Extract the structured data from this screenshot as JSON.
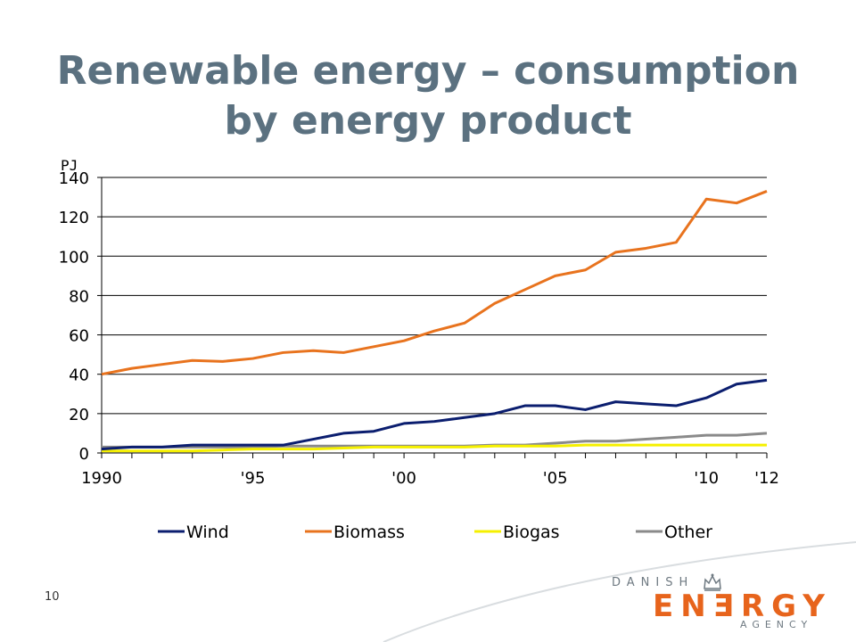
{
  "slide": {
    "title_line1": "Renewable energy – consumption",
    "title_line2": "by energy product",
    "page_number": "10"
  },
  "logo": {
    "line1": "DANISH",
    "line2": "ENƎRGY",
    "line3": "AGENCY"
  },
  "colors": {
    "title": "#5b7180",
    "wind": "#0b1e6f",
    "biomass": "#e8731e",
    "biogas": "#f5f000",
    "other": "#8a8a8a",
    "logo_orange": "#e7641c",
    "logo_gray": "#6f7a82"
  },
  "chart_data": {
    "type": "line",
    "ylabel": "PJ",
    "xlabel": "",
    "ylim": [
      0,
      140
    ],
    "yticks": [
      0,
      20,
      40,
      60,
      80,
      100,
      120,
      140
    ],
    "xlim": [
      1990,
      2012
    ],
    "xtick_labels": [
      {
        "year": 1990,
        "label": "1990"
      },
      {
        "year": 1995,
        "label": "'95"
      },
      {
        "year": 2000,
        "label": "'00"
      },
      {
        "year": 2005,
        "label": "'05"
      },
      {
        "year": 2010,
        "label": "'10"
      },
      {
        "year": 2012,
        "label": "'12"
      }
    ],
    "grid": "horizontal",
    "legend_position": "bottom",
    "x": [
      1990,
      1991,
      1992,
      1993,
      1994,
      1995,
      1996,
      1997,
      1998,
      1999,
      2000,
      2001,
      2002,
      2003,
      2004,
      2005,
      2006,
      2007,
      2008,
      2009,
      2010,
      2011,
      2012
    ],
    "series": [
      {
        "name": "Wind",
        "color": "#0b1e6f",
        "values": [
          2,
          3,
          3,
          4,
          4,
          4,
          4,
          7,
          10,
          11,
          15,
          16,
          18,
          20,
          24,
          24,
          22,
          26,
          25,
          24,
          28,
          35,
          37
        ]
      },
      {
        "name": "Biomass",
        "color": "#e8731e",
        "values": [
          40,
          43,
          45,
          47,
          46.5,
          48,
          51,
          52,
          51,
          54,
          57,
          62,
          66,
          76,
          83,
          90,
          93,
          102,
          104,
          107,
          129,
          127,
          133
        ]
      },
      {
        "name": "Biogas",
        "color": "#f5f000",
        "values": [
          1,
          1,
          1,
          1,
          1.5,
          2,
          2,
          2,
          2.5,
          3,
          3,
          3,
          3,
          3.5,
          3.5,
          3.5,
          4,
          4,
          4,
          4,
          4,
          4,
          4
        ]
      },
      {
        "name": "Other",
        "color": "#8a8a8a",
        "values": [
          3,
          3,
          3,
          3,
          3,
          3,
          3.5,
          3.5,
          3.5,
          3.5,
          3.5,
          3.5,
          3.5,
          4,
          4,
          5,
          6,
          6,
          7,
          8,
          9,
          9,
          10
        ]
      }
    ]
  }
}
